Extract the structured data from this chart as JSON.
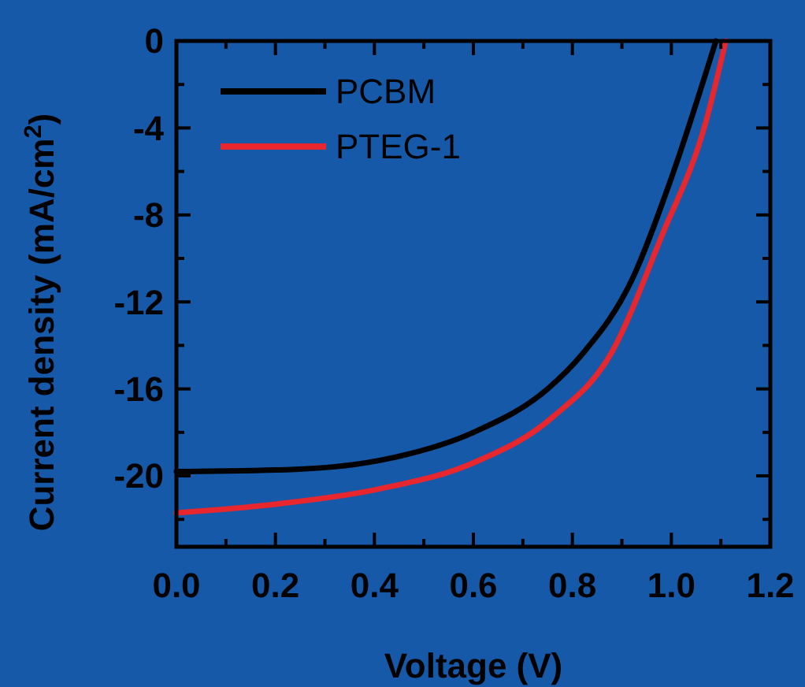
{
  "chart_data": {
    "type": "line",
    "xlabel": "Voltage (V)",
    "ylabel": "Current density (mA/cm$^{2}$)",
    "xlim": [
      0,
      1.2
    ],
    "ylim": [
      -23.26,
      0
    ],
    "xticks": [
      {
        "value": 0,
        "label": "0.0"
      },
      {
        "value": 0.1,
        "label": null
      },
      {
        "value": 0.2,
        "label": "0.2"
      },
      {
        "value": 0.3,
        "label": null
      },
      {
        "value": 0.4,
        "label": "0.4"
      },
      {
        "value": 0.5,
        "label": null
      },
      {
        "value": 0.6,
        "label": "0.6"
      },
      {
        "value": 0.7,
        "label": null
      },
      {
        "value": 0.8,
        "label": "0.8"
      },
      {
        "value": 0.9,
        "label": null
      },
      {
        "value": 1,
        "label": "1.0"
      },
      {
        "value": 1.1,
        "label": null
      },
      {
        "value": 1.2,
        "label": "1.2"
      }
    ],
    "yticks": [
      0,
      {
        "value": -2,
        "label": null
      },
      -4,
      {
        "value": -6,
        "label": null
      },
      -8,
      {
        "value": -10,
        "label": null
      },
      -12,
      {
        "value": -14,
        "label": null
      },
      -16,
      {
        "value": -18,
        "label": null
      },
      -20,
      {
        "value": -22,
        "label": null
      }
    ],
    "legend": "top left",
    "grid": false,
    "marker": "none",
    "line_style": "solid",
    "series": [
      {
        "name": "PCBM",
        "color": "#000000",
        "x": [
          0,
          0.24,
          0.43,
          0.6,
          0.75,
          0.82,
          0.92,
          1.0,
          1.09
        ],
        "values": [
          -19.8,
          -19.7,
          -19.2,
          -18.0,
          -16.0,
          -14.4,
          -11.0,
          -6.3,
          0
        ]
      },
      {
        "name": "PTEG-1",
        "color": "#e8262e",
        "x": [
          0,
          0.2,
          0.41,
          0.6,
          0.76,
          0.88,
          0.98,
          1.07,
          1.11
        ],
        "values": [
          -21.7,
          -21.3,
          -20.6,
          -19.4,
          -17.3,
          -14.3,
          -9.0,
          -3.7,
          0
        ]
      }
    ]
  }
}
